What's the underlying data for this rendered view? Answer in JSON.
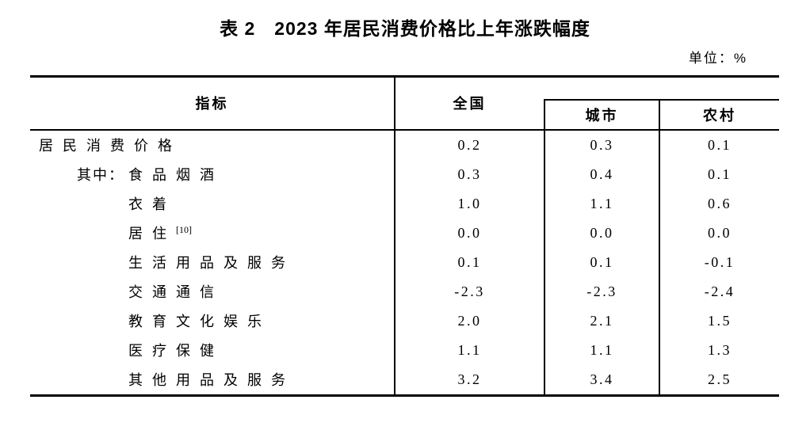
{
  "page": {
    "title": "表 2　2023 年居民消费价格比上年涨跌幅度",
    "unit_label": "单位：%"
  },
  "colors": {
    "text": "#000000",
    "background": "#ffffff",
    "rule": "#000000"
  },
  "table": {
    "header": {
      "indicator": "指标",
      "national": "全国",
      "urban": "城市",
      "rural": "农村"
    },
    "rows": [
      {
        "prefix": "",
        "label": "居民消费价格",
        "sup": "",
        "national": "0.2",
        "urban": "0.3",
        "rural": "0.1"
      },
      {
        "prefix": "其中：",
        "label": "食品烟酒",
        "sup": "",
        "national": "0.3",
        "urban": "0.4",
        "rural": "0.1"
      },
      {
        "prefix": "",
        "label": "衣着",
        "sup": "",
        "national": "1.0",
        "urban": "1.1",
        "rural": "0.6"
      },
      {
        "prefix": "",
        "label": "居住",
        "sup": "[10]",
        "national": "0.0",
        "urban": "0.0",
        "rural": "0.0"
      },
      {
        "prefix": "",
        "label": "生活用品及服务",
        "sup": "",
        "national": "0.1",
        "urban": "0.1",
        "rural": "-0.1"
      },
      {
        "prefix": "",
        "label": "交通通信",
        "sup": "",
        "national": "-2.3",
        "urban": "-2.3",
        "rural": "-2.4"
      },
      {
        "prefix": "",
        "label": "教育文化娱乐",
        "sup": "",
        "national": "2.0",
        "urban": "2.1",
        "rural": "1.5"
      },
      {
        "prefix": "",
        "label": "医疗保健",
        "sup": "",
        "national": "1.1",
        "urban": "1.1",
        "rural": "1.3"
      },
      {
        "prefix": "",
        "label": "其他用品及服务",
        "sup": "",
        "national": "3.2",
        "urban": "3.4",
        "rural": "2.5"
      }
    ]
  }
}
